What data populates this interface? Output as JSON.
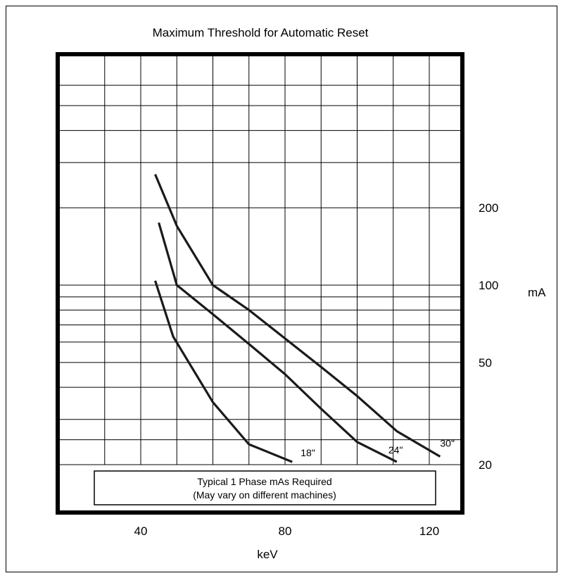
{
  "chart_data": {
    "type": "line",
    "title": "Maximum Threshold for Automatic Reset",
    "xlabel": "keV",
    "ylabel": "mA",
    "x_scale": "linear",
    "y_scale": "log",
    "xlim": [
      20,
      128
    ],
    "ylim": [
      13.4,
      700
    ],
    "x_ticks": [
      40,
      80,
      120
    ],
    "x_tick_labels": [
      "40",
      "80",
      "120"
    ],
    "x_gridlines": [
      30,
      40,
      50,
      60,
      70,
      80,
      90,
      100,
      110,
      120
    ],
    "y_ticks": [
      20,
      50,
      100,
      200
    ],
    "y_tick_labels": [
      "20",
      "50",
      "100",
      "200"
    ],
    "y_gridlines": [
      20,
      25,
      30,
      40,
      50,
      60,
      70,
      80,
      90,
      100,
      200,
      300,
      400,
      500,
      600
    ],
    "grid": true,
    "annotation": {
      "line1": "Typical 1 Phase mAs Required",
      "line2": "(May vary on different machines)"
    },
    "series": [
      {
        "name": "18\"",
        "x": [
          44,
          49,
          60,
          70,
          82
        ],
        "y": [
          104,
          63,
          35,
          24,
          20.5
        ]
      },
      {
        "name": "24\"",
        "x": [
          45,
          50,
          60,
          70,
          80,
          90,
          100,
          111
        ],
        "y": [
          175,
          100,
          77,
          59,
          45,
          33,
          24.5,
          20.5
        ]
      },
      {
        "name": "30\"",
        "x": [
          44,
          50,
          60,
          70,
          80,
          90,
          100,
          111,
          123
        ],
        "y": [
          270,
          170,
          100,
          80,
          62,
          48,
          37,
          27,
          21.5
        ]
      }
    ],
    "colors": {
      "line": "#1a1a1a",
      "grid": "#000000",
      "frame": "#000000",
      "background": "#ffffff"
    }
  }
}
